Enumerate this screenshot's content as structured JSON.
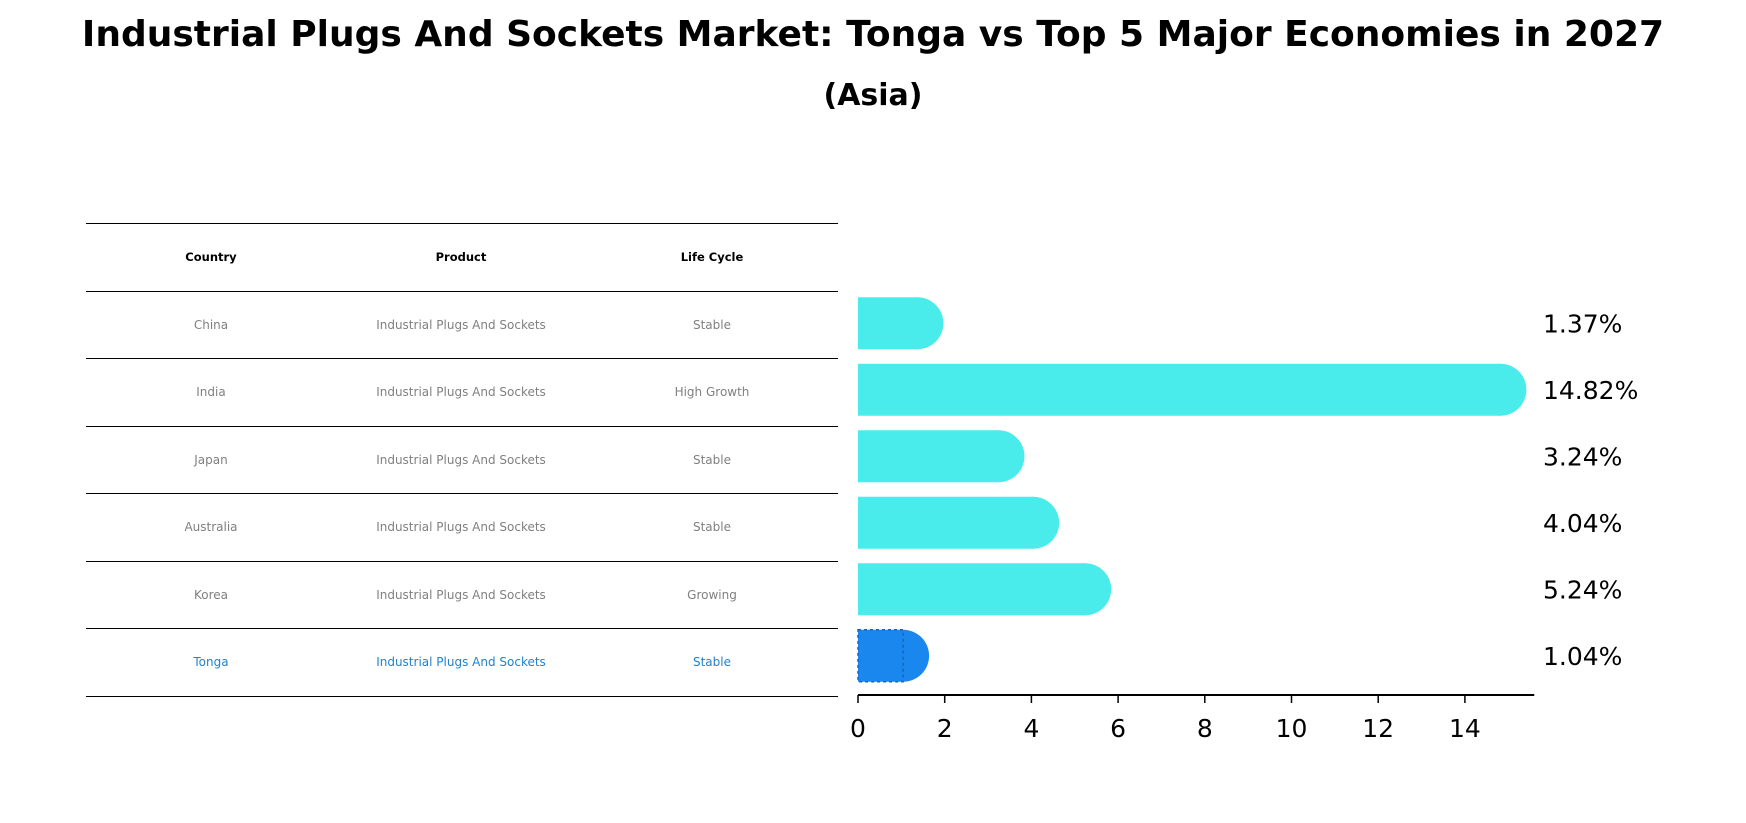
{
  "title": "Industrial Plugs And Sockets Market: Tonga vs Top 5 Major Economies in 2027",
  "subtitle": "(Asia)",
  "table": {
    "headers": [
      "Country",
      "Product",
      "Life Cycle"
    ],
    "rows": [
      {
        "country": "China",
        "product": "Industrial Plugs And Sockets",
        "life_cycle": "Stable"
      },
      {
        "country": "India",
        "product": "Industrial Plugs And Sockets",
        "life_cycle": "High Growth"
      },
      {
        "country": "Japan",
        "product": "Industrial Plugs And Sockets",
        "life_cycle": "Stable"
      },
      {
        "country": "Australia",
        "product": "Industrial Plugs And Sockets",
        "life_cycle": "Stable"
      },
      {
        "country": "Korea",
        "product": "Industrial Plugs And Sockets",
        "life_cycle": "Growing"
      },
      {
        "country": "Tonga",
        "product": "Industrial Plugs And Sockets",
        "life_cycle": "Stable"
      }
    ]
  },
  "colors": {
    "bar": "#4aeceb",
    "highlight_bar": "#1a87ef",
    "highlight_text": "#1f82d2",
    "row_text": "#808080"
  },
  "chart_data": {
    "type": "bar",
    "orientation": "horizontal",
    "categories": [
      "China",
      "India",
      "Japan",
      "Australia",
      "Korea",
      "Tonga"
    ],
    "values": [
      1.37,
      14.82,
      3.24,
      4.04,
      5.24,
      1.04
    ],
    "labels": [
      "1.37%",
      "14.82%",
      "3.24%",
      "4.04%",
      "5.24%",
      "1.04%"
    ],
    "highlight": "Tonga",
    "xlim": [
      0,
      15.6
    ],
    "xticks": [
      0,
      2,
      4,
      6,
      8,
      10,
      12,
      14
    ],
    "xtick_labels": [
      "0",
      "2",
      "4",
      "6",
      "8",
      "10",
      "12",
      "14"
    ]
  }
}
